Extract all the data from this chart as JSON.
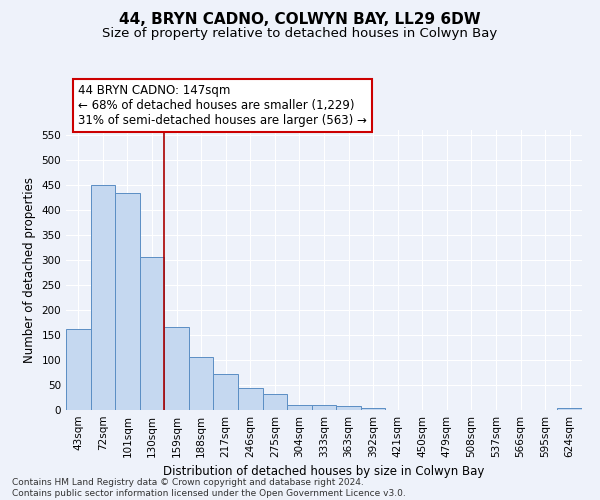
{
  "title": "44, BRYN CADNO, COLWYN BAY, LL29 6DW",
  "subtitle": "Size of property relative to detached houses in Colwyn Bay",
  "xlabel": "Distribution of detached houses by size in Colwyn Bay",
  "ylabel": "Number of detached properties",
  "categories": [
    "43sqm",
    "72sqm",
    "101sqm",
    "130sqm",
    "159sqm",
    "188sqm",
    "217sqm",
    "246sqm",
    "275sqm",
    "304sqm",
    "333sqm",
    "363sqm",
    "392sqm",
    "421sqm",
    "450sqm",
    "479sqm",
    "508sqm",
    "537sqm",
    "566sqm",
    "595sqm",
    "624sqm"
  ],
  "values": [
    163,
    450,
    435,
    307,
    166,
    106,
    72,
    44,
    33,
    11,
    11,
    9,
    4,
    0,
    0,
    0,
    0,
    0,
    0,
    0,
    5
  ],
  "bar_color": "#c5d8f0",
  "bar_edge_color": "#5b8ec4",
  "background_color": "#eef2fa",
  "grid_color": "#ffffff",
  "annotation_text": "44 BRYN CADNO: 147sqm\n← 68% of detached houses are smaller (1,229)\n31% of semi-detached houses are larger (563) →",
  "annotation_box_color": "#ffffff",
  "annotation_box_edge_color": "#cc0000",
  "vline_color": "#aa0000",
  "vline_x": 3.5,
  "ylim": [
    0,
    560
  ],
  "yticks": [
    0,
    50,
    100,
    150,
    200,
    250,
    300,
    350,
    400,
    450,
    500,
    550
  ],
  "footnote": "Contains HM Land Registry data © Crown copyright and database right 2024.\nContains public sector information licensed under the Open Government Licence v3.0.",
  "title_fontsize": 11,
  "subtitle_fontsize": 9.5,
  "ylabel_fontsize": 8.5,
  "xlabel_fontsize": 8.5,
  "tick_fontsize": 7.5,
  "annotation_fontsize": 8.5,
  "footnote_fontsize": 6.5
}
